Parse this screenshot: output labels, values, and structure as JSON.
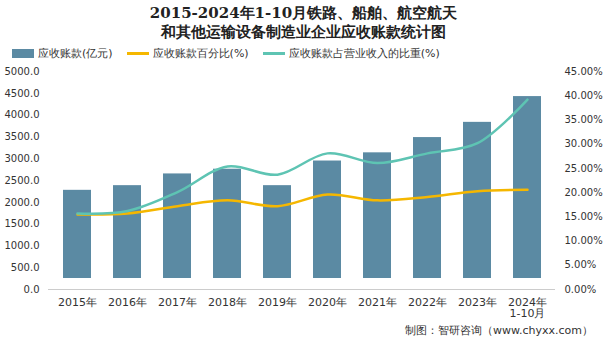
{
  "chart_data": {
    "type": "bar",
    "title": "2015-2024年1-10月铁路、船舶、航空航天和其他运输设备制造业企业应收账款统计图",
    "caption": "制图：智研咨询（www.chyxx.com）",
    "categories": [
      "2015年",
      "2016年",
      "2017年",
      "2018年",
      "2019年",
      "2020年",
      "2021年",
      "2022年",
      "2023年",
      "2024年\n1-10月"
    ],
    "series": [
      {
        "name": "应收账款(亿元)",
        "type": "bar",
        "color": "#5b8aa3",
        "values": [
          2527,
          2634,
          2903,
          3011,
          2634,
          3199,
          3387,
          3737,
          4086,
          4677
        ]
      },
      {
        "name": "应收账款百分比(%)",
        "type": "line",
        "axis": "y2",
        "color": "#f5b700",
        "values": [
          15.5,
          15.7,
          17.2,
          18.4,
          17.2,
          19.6,
          18.4,
          19.1,
          20.3,
          20.6
        ]
      },
      {
        "name": "应收账款占营业收入的比重(%)",
        "type": "line",
        "axis": "y2",
        "color": "#5ec4b3",
        "values": [
          15.7,
          16.2,
          20.1,
          25.4,
          23.7,
          28.1,
          26.1,
          28.1,
          30.2,
          39.2
        ]
      }
    ],
    "ylim": [
      0,
      5000
    ],
    "yticks": [
      {
        "value": 0,
        "label": "0.0"
      },
      {
        "value": 500,
        "label": "500.0"
      },
      {
        "value": 1000,
        "label": "1000.0"
      },
      {
        "value": 1500,
        "label": "1500.0"
      },
      {
        "value": 2000,
        "label": "2000.0"
      },
      {
        "value": 2500,
        "label": "2500.0"
      },
      {
        "value": 3000,
        "label": "3000.0"
      },
      {
        "value": 3500,
        "label": "3500.0"
      },
      {
        "value": 4000,
        "label": "4000.0"
      },
      {
        "value": 4500,
        "label": "4500.0"
      },
      {
        "value": 5000,
        "label": "5000.0"
      }
    ],
    "y2lim": [
      0,
      45
    ],
    "y2ticks": [
      {
        "value": 0,
        "label": "0.00%"
      },
      {
        "value": 5,
        "label": "5.00%"
      },
      {
        "value": 10,
        "label": "10.00%"
      },
      {
        "value": 15,
        "label": "15.00%"
      },
      {
        "value": 20,
        "label": "20.00%"
      },
      {
        "value": 25,
        "label": "25.00%"
      },
      {
        "value": 30,
        "label": "30.00%"
      },
      {
        "value": 35,
        "label": "35.00%"
      },
      {
        "value": 40,
        "label": "40.00%"
      },
      {
        "value": 45,
        "label": "45.00%"
      }
    ],
    "grid": false,
    "legend": "top-left"
  }
}
